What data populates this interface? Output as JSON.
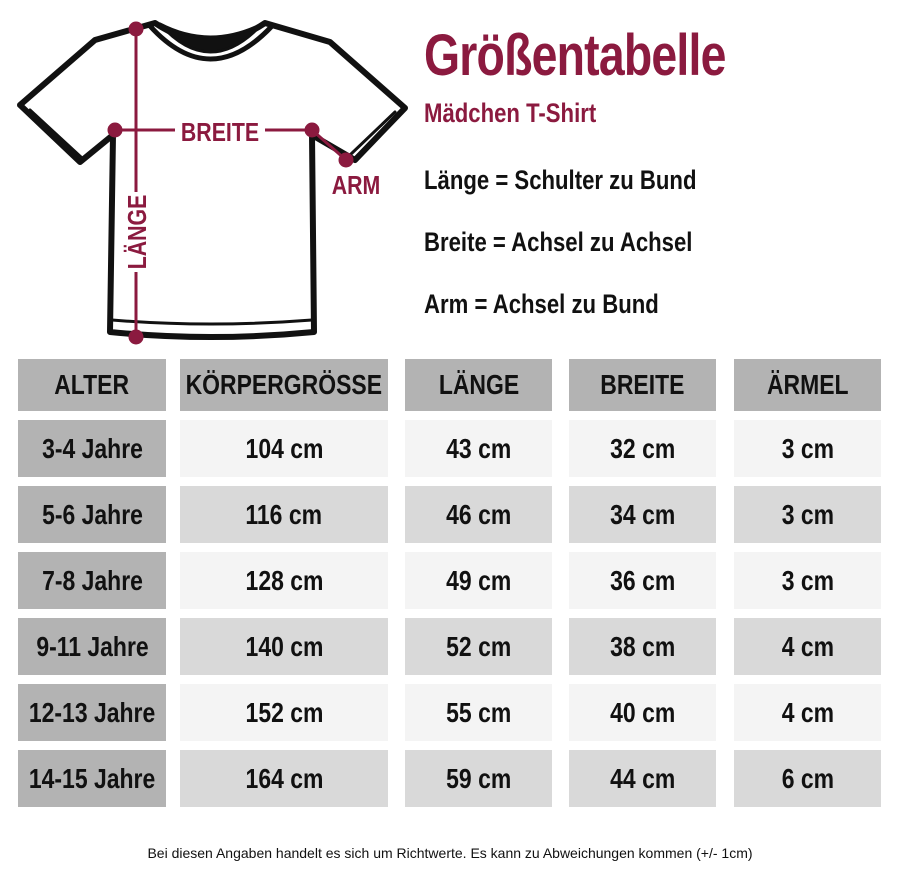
{
  "title": "Größentabelle",
  "subtitle": "Mädchen T-Shirt",
  "diagram": {
    "breite": "BREITE",
    "arm": "ARM",
    "laenge": "LÄNGE",
    "accent": "#8b1a3f"
  },
  "definitions": [
    "Länge = Schulter zu Bund",
    "Breite = Achsel zu Achsel",
    "Arm = Achsel zu Bund"
  ],
  "table": {
    "headers": [
      "ALTER",
      "KÖRPERGRÖSSE",
      "LÄNGE",
      "BREITE",
      "ÄRMEL"
    ],
    "rows": [
      [
        "3-4 Jahre",
        "104 cm",
        "43 cm",
        "32 cm",
        "3 cm"
      ],
      [
        "5-6 Jahre",
        "116 cm",
        "46 cm",
        "34 cm",
        "3 cm"
      ],
      [
        "7-8 Jahre",
        "128 cm",
        "49 cm",
        "36 cm",
        "3 cm"
      ],
      [
        "9-11 Jahre",
        "140 cm",
        "52 cm",
        "38 cm",
        "4 cm"
      ],
      [
        "12-13 Jahre",
        "152 cm",
        "55 cm",
        "40 cm",
        "4 cm"
      ],
      [
        "14-15 Jahre",
        "164 cm",
        "59 cm",
        "44 cm",
        "6 cm"
      ]
    ]
  },
  "note": "Bei diesen Angaben handelt es sich um Richtwerte. Es kann zu Abweichungen kommen (+/- 1cm)"
}
